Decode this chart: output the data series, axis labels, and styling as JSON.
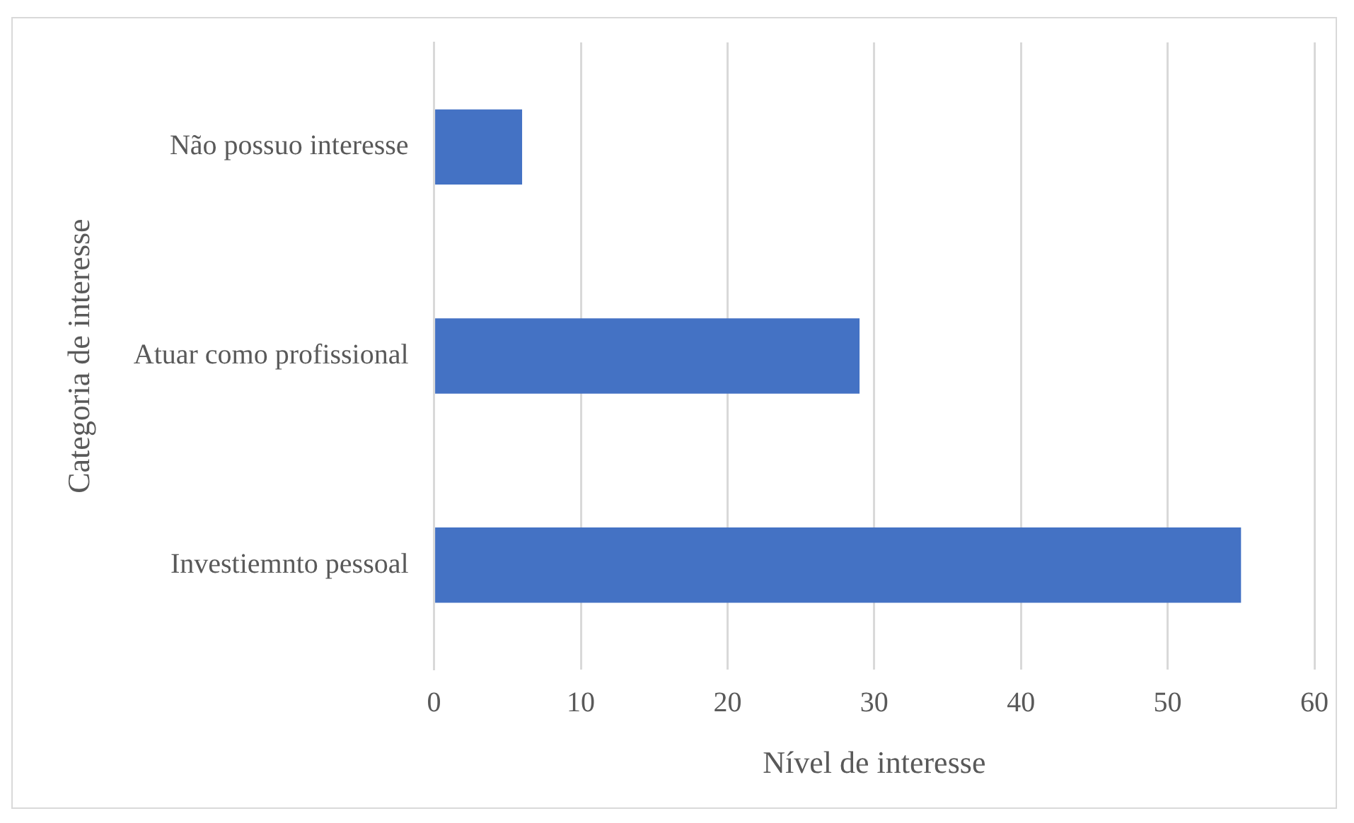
{
  "chart_data": {
    "type": "bar",
    "orientation": "horizontal",
    "xlabel": "Nível de interesse",
    "ylabel": "Categoria de interesse",
    "categories": [
      "Não possuo interesse",
      "Atuar como profissional",
      "Investiemnto pessoal"
    ],
    "values": [
      6,
      29,
      55
    ],
    "color": "#4472c4",
    "xlim": [
      0,
      60
    ],
    "xticks": [
      0,
      10,
      20,
      30,
      40,
      50,
      60
    ],
    "grid": "x",
    "legend": false
  }
}
